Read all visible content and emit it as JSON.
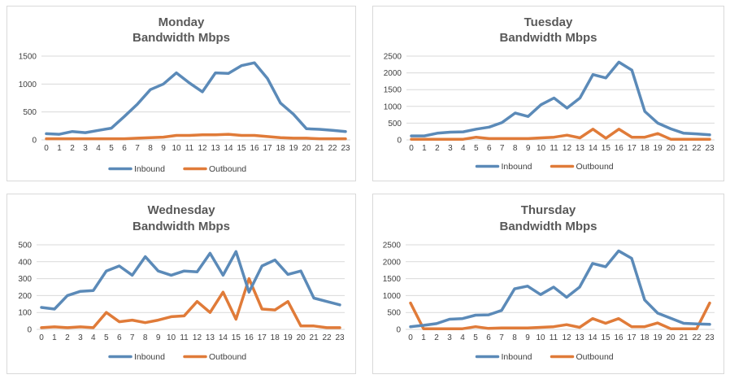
{
  "colors": {
    "inbound": "#5b8ab8",
    "outbound": "#e07b39",
    "grid": "#d9d9d9",
    "text": "#404040",
    "title": "#595959"
  },
  "legend": {
    "inbound_label": "Inbound",
    "outbound_label": "Outbound"
  },
  "chart_data": [
    {
      "type": "line",
      "title_line1": "Monday",
      "title_line2": "Bandwidth Mbps",
      "x": [
        0,
        1,
        2,
        3,
        4,
        5,
        6,
        7,
        8,
        9,
        10,
        11,
        12,
        13,
        14,
        15,
        16,
        17,
        18,
        19,
        20,
        21,
        22,
        23
      ],
      "ylim": [
        0,
        1500
      ],
      "yticks": [
        0,
        500,
        1000,
        1500
      ],
      "legend_position": "bottom",
      "series": [
        {
          "name": "Inbound",
          "values": [
            110,
            100,
            150,
            130,
            170,
            210,
            420,
            640,
            900,
            1000,
            1200,
            1020,
            860,
            1200,
            1190,
            1330,
            1380,
            1100,
            660,
            460,
            200,
            190,
            170,
            150
          ]
        },
        {
          "name": "Outbound",
          "values": [
            20,
            20,
            20,
            20,
            20,
            20,
            20,
            30,
            40,
            50,
            80,
            80,
            90,
            90,
            100,
            80,
            80,
            60,
            40,
            30,
            30,
            20,
            20,
            20
          ]
        }
      ]
    },
    {
      "type": "line",
      "title_line1": "Tuesday",
      "title_line2": "Bandwidth Mbps",
      "x": [
        0,
        1,
        2,
        3,
        4,
        5,
        6,
        7,
        8,
        9,
        10,
        11,
        12,
        13,
        14,
        15,
        16,
        17,
        18,
        19,
        20,
        21,
        22,
        23
      ],
      "ylim": [
        0,
        2500
      ],
      "yticks": [
        0,
        500,
        1000,
        1500,
        2000,
        2500
      ],
      "legend_position": "bottom",
      "series": [
        {
          "name": "Inbound",
          "values": [
            120,
            120,
            200,
            230,
            240,
            320,
            380,
            520,
            800,
            700,
            1050,
            1250,
            950,
            1250,
            1950,
            1850,
            2320,
            2080,
            850,
            500,
            330,
            200,
            180,
            150
          ]
        },
        {
          "name": "Outbound",
          "values": [
            20,
            20,
            20,
            20,
            20,
            80,
            40,
            40,
            40,
            40,
            60,
            80,
            140,
            60,
            320,
            50,
            320,
            80,
            80,
            190,
            20,
            20,
            20,
            20
          ]
        }
      ]
    },
    {
      "type": "line",
      "title_line1": "Wednesday",
      "title_line2": "Bandwidth Mbps",
      "x": [
        0,
        1,
        2,
        3,
        4,
        5,
        6,
        7,
        8,
        9,
        10,
        11,
        12,
        13,
        14,
        15,
        16,
        17,
        18,
        19,
        20,
        21,
        22,
        23
      ],
      "ylim": [
        0,
        500
      ],
      "yticks": [
        0,
        100,
        200,
        300,
        400,
        500
      ],
      "legend_position": "bottom",
      "series": [
        {
          "name": "Inbound",
          "values": [
            130,
            120,
            200,
            225,
            230,
            345,
            375,
            320,
            430,
            345,
            320,
            345,
            340,
            450,
            320,
            460,
            220,
            375,
            410,
            325,
            345,
            185,
            165,
            145
          ]
        },
        {
          "name": "Outbound",
          "values": [
            10,
            15,
            10,
            15,
            10,
            100,
            45,
            55,
            40,
            55,
            75,
            80,
            165,
            100,
            220,
            60,
            300,
            120,
            115,
            165,
            20,
            20,
            10,
            10
          ]
        }
      ]
    },
    {
      "type": "line",
      "title_line1": "Thursday",
      "title_line2": "Bandwidth Mbps",
      "x": [
        0,
        1,
        2,
        3,
        4,
        5,
        6,
        7,
        8,
        9,
        10,
        11,
        12,
        13,
        14,
        15,
        16,
        17,
        18,
        19,
        20,
        21,
        22,
        23
      ],
      "ylim": [
        0,
        2500
      ],
      "yticks": [
        0,
        500,
        1000,
        1500,
        2000,
        2500
      ],
      "legend_position": "bottom",
      "series": [
        {
          "name": "Inbound",
          "values": [
            80,
            120,
            170,
            300,
            320,
            420,
            430,
            560,
            1200,
            1280,
            1030,
            1250,
            950,
            1250,
            1950,
            1850,
            2320,
            2100,
            870,
            480,
            330,
            180,
            160,
            150
          ]
        },
        {
          "name": "Outbound",
          "values": [
            780,
            20,
            20,
            20,
            20,
            80,
            30,
            40,
            40,
            40,
            60,
            80,
            140,
            60,
            320,
            180,
            320,
            80,
            80,
            190,
            20,
            20,
            20,
            780
          ]
        }
      ]
    }
  ]
}
